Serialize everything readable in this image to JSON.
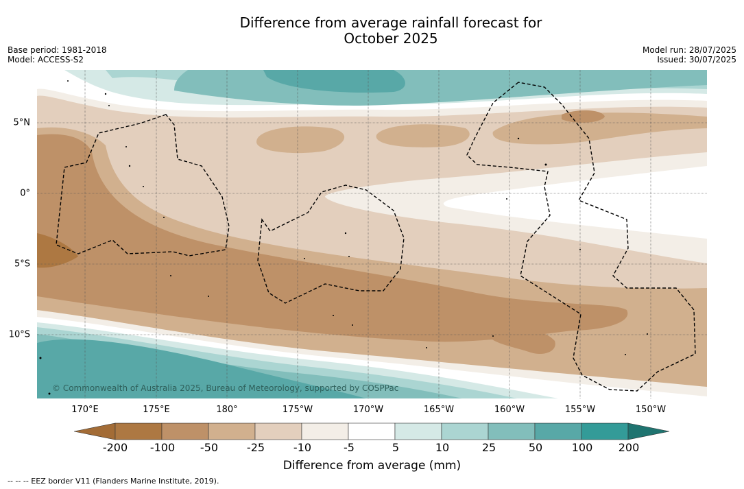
{
  "title_line1": "Difference from average rainfall forecast for",
  "title_line2": "October 2025",
  "base_period": "Base period: 1981-2018",
  "model": "Model: ACCESS-S2",
  "model_run": "Model run: 28/07/2025",
  "issued": "Issued: 30/07/2025",
  "copyright": "© Commonwealth of Australia 2025, Bureau of Meteorology, supported by COSPPac",
  "footnote": "--  --  -- EEZ border V11 (Flanders Marine Institute, 2019).",
  "longitude_labels": [
    "170°E",
    "175°E",
    "180°",
    "175°W",
    "170°W",
    "165°W",
    "160°W",
    "155°W",
    "150°W"
  ],
  "latitude_labels": [
    "5°N",
    "0°",
    "5°S",
    "10°S"
  ],
  "colorbar": {
    "title": "Difference from average (mm)",
    "ticks": [
      "-200",
      "-100",
      "-50",
      "-25",
      "-10",
      "-5",
      "5",
      "10",
      "25",
      "50",
      "100",
      "200"
    ],
    "colors": [
      "#a36c36",
      "#ad7842",
      "#be9168",
      "#d1b08e",
      "#e3cfbd",
      "#f3eee7",
      "#ffffff",
      "#d5e9e6",
      "#abd5d2",
      "#82bebb",
      "#58a8a7",
      "#339b98",
      "#1f7470"
    ]
  }
}
